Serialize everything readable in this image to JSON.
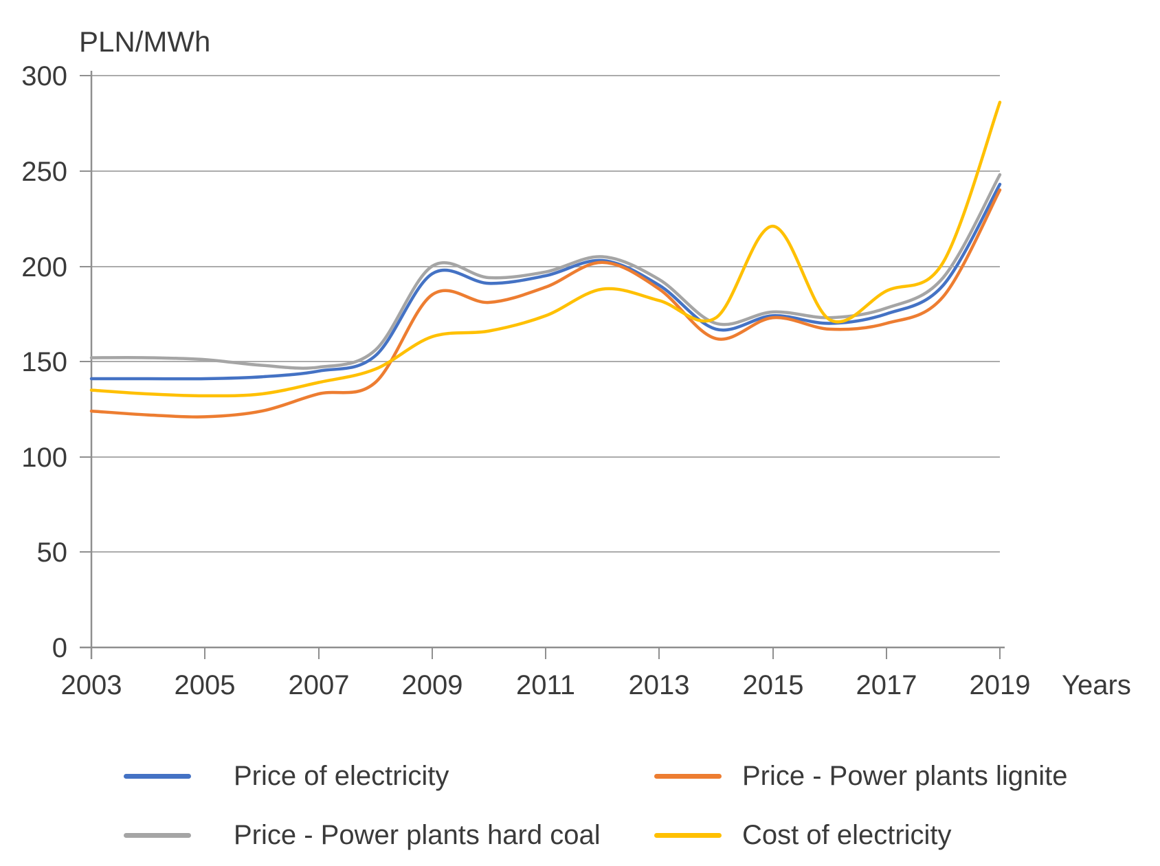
{
  "chart": {
    "title": "PLN/MWh",
    "x_axis_label": "Years",
    "y_ticks": [
      "300",
      "250",
      "200",
      "150",
      "100",
      "50",
      "0"
    ],
    "x_ticks": [
      "2003",
      "2005",
      "2007",
      "2009",
      "2011",
      "2013",
      "2015",
      "2017",
      "2019"
    ]
  },
  "chart_data": {
    "type": "line",
    "title": "PLN/MWh",
    "xlabel": "Years",
    "ylabel": "PLN/MWh",
    "x": [
      2003,
      2004,
      2005,
      2006,
      2007,
      2008,
      2009,
      2010,
      2011,
      2012,
      2013,
      2014,
      2015,
      2016,
      2017,
      2018,
      2019
    ],
    "xlim": [
      2003,
      2019
    ],
    "ylim": [
      0,
      300
    ],
    "grid": true,
    "legend_position": "bottom",
    "line_style": "smooth",
    "series": [
      {
        "name": "Price of electricity",
        "color": "#4472C4",
        "values": [
          141,
          141,
          141,
          142,
          145,
          153,
          196,
          191,
          195,
          203,
          190,
          167,
          174,
          170,
          175,
          190,
          243
        ]
      },
      {
        "name": "Price - Power plants lignite",
        "color": "#ED7D31",
        "values": [
          124,
          122,
          121,
          124,
          133,
          139,
          185,
          181,
          189,
          202,
          188,
          162,
          173,
          167,
          170,
          184,
          240
        ]
      },
      {
        "name": "Price - Power plants hard coal",
        "color": "#A5A5A5",
        "values": [
          152,
          152,
          151,
          148,
          147,
          156,
          200,
          194,
          197,
          205,
          193,
          170,
          176,
          173,
          178,
          194,
          248
        ]
      },
      {
        "name": "Cost of electricity",
        "color": "#FFC000",
        "values": [
          135,
          133,
          132,
          133,
          139,
          146,
          163,
          166,
          174,
          188,
          182,
          173,
          221,
          172,
          187,
          202,
          286
        ]
      }
    ]
  },
  "legend": {
    "items": [
      {
        "label": "Price of electricity"
      },
      {
        "label": "Price - Power plants lignite"
      },
      {
        "label": "Price - Power plants hard coal"
      },
      {
        "label": "Cost of electricity"
      }
    ]
  }
}
